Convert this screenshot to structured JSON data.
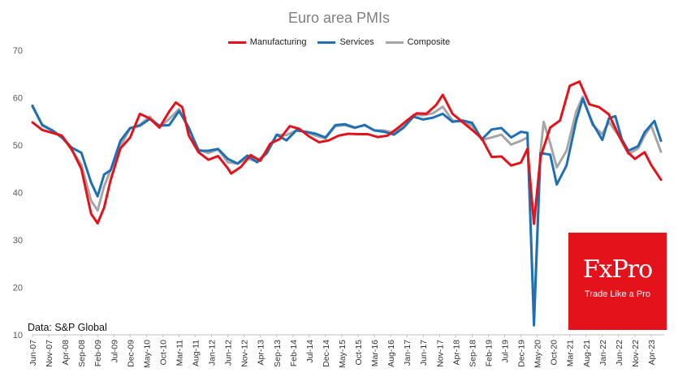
{
  "chart_data": {
    "type": "line",
    "title": "Euro area PMIs",
    "ylim": [
      10,
      70
    ],
    "yticks": [
      10,
      20,
      30,
      40,
      50,
      60,
      70
    ],
    "grid": false,
    "legend_position": "top-center",
    "x_tick_labels": [
      "Jun-07",
      "Nov-07",
      "Apr-08",
      "Sep-08",
      "Feb-09",
      "Jul-09",
      "Dec-09",
      "May-10",
      "Oct-10",
      "Mar-11",
      "Aug-11",
      "Jan-12",
      "Jun-12",
      "Nov-12",
      "Apr-13",
      "Sep-13",
      "Feb-14",
      "Jul-14",
      "Dec-14",
      "May-15",
      "Oct-15",
      "Mar-16",
      "Aug-16",
      "Jan-17",
      "Jun-17",
      "Nov-17",
      "Apr-18",
      "Sep-18",
      "Feb-19",
      "Jul-19",
      "Dec-19",
      "May-20",
      "Oct-20",
      "Mar-21",
      "Aug-21",
      "Jan-22",
      "Jun-22",
      "Nov-22",
      "Apr-23"
    ],
    "series": [
      {
        "name": "Manufacturing",
        "color": "#e3121b",
        "points": [
          [
            "2007-06",
            54.8
          ],
          [
            "2007-09",
            53.2
          ],
          [
            "2007-12",
            52.6
          ],
          [
            "2008-03",
            52.0
          ],
          [
            "2008-06",
            49.2
          ],
          [
            "2008-09",
            45.0
          ],
          [
            "2008-12",
            35.5
          ],
          [
            "2009-02",
            33.5
          ],
          [
            "2009-04",
            36.8
          ],
          [
            "2009-06",
            42.6
          ],
          [
            "2009-09",
            49.3
          ],
          [
            "2009-12",
            51.6
          ],
          [
            "2010-03",
            56.6
          ],
          [
            "2010-06",
            55.6
          ],
          [
            "2010-09",
            53.7
          ],
          [
            "2010-12",
            57.1
          ],
          [
            "2011-02",
            59.0
          ],
          [
            "2011-04",
            58.0
          ],
          [
            "2011-06",
            52.0
          ],
          [
            "2011-09",
            48.5
          ],
          [
            "2011-12",
            46.9
          ],
          [
            "2012-03",
            47.7
          ],
          [
            "2012-06",
            45.1
          ],
          [
            "2012-07",
            44.0
          ],
          [
            "2012-10",
            45.4
          ],
          [
            "2013-01",
            47.9
          ],
          [
            "2013-04",
            46.7
          ],
          [
            "2013-07",
            50.3
          ],
          [
            "2013-10",
            51.3
          ],
          [
            "2014-01",
            54.0
          ],
          [
            "2014-04",
            53.4
          ],
          [
            "2014-07",
            51.8
          ],
          [
            "2014-10",
            50.6
          ],
          [
            "2015-01",
            51.0
          ],
          [
            "2015-04",
            52.0
          ],
          [
            "2015-07",
            52.4
          ],
          [
            "2015-10",
            52.3
          ],
          [
            "2016-01",
            52.3
          ],
          [
            "2016-04",
            51.7
          ],
          [
            "2016-07",
            52.0
          ],
          [
            "2016-10",
            53.5
          ],
          [
            "2017-01",
            55.2
          ],
          [
            "2017-04",
            56.7
          ],
          [
            "2017-07",
            56.6
          ],
          [
            "2017-10",
            58.5
          ],
          [
            "2017-12",
            60.6
          ],
          [
            "2018-03",
            56.6
          ],
          [
            "2018-06",
            54.9
          ],
          [
            "2018-09",
            53.2
          ],
          [
            "2018-12",
            51.4
          ],
          [
            "2019-03",
            47.5
          ],
          [
            "2019-06",
            47.6
          ],
          [
            "2019-09",
            45.7
          ],
          [
            "2019-12",
            46.3
          ],
          [
            "2020-02",
            49.2
          ],
          [
            "2020-04",
            33.4
          ],
          [
            "2020-06",
            47.4
          ],
          [
            "2020-09",
            53.7
          ],
          [
            "2020-12",
            55.2
          ],
          [
            "2021-03",
            62.5
          ],
          [
            "2021-06",
            63.4
          ],
          [
            "2021-09",
            58.6
          ],
          [
            "2021-12",
            58.0
          ],
          [
            "2022-03",
            56.5
          ],
          [
            "2022-06",
            52.1
          ],
          [
            "2022-09",
            48.4
          ],
          [
            "2022-11",
            47.1
          ],
          [
            "2023-02",
            48.5
          ],
          [
            "2023-04",
            45.8
          ],
          [
            "2023-07",
            42.7
          ]
        ]
      },
      {
        "name": "Services",
        "color": "#1f6fb5",
        "points": [
          [
            "2007-06",
            58.3
          ],
          [
            "2007-09",
            54.2
          ],
          [
            "2007-12",
            53.1
          ],
          [
            "2008-03",
            51.6
          ],
          [
            "2008-06",
            49.5
          ],
          [
            "2008-09",
            48.4
          ],
          [
            "2008-12",
            42.1
          ],
          [
            "2009-02",
            39.2
          ],
          [
            "2009-04",
            43.8
          ],
          [
            "2009-06",
            44.7
          ],
          [
            "2009-09",
            50.9
          ],
          [
            "2009-12",
            53.6
          ],
          [
            "2010-03",
            54.1
          ],
          [
            "2010-06",
            55.5
          ],
          [
            "2010-09",
            54.1
          ],
          [
            "2010-12",
            54.2
          ],
          [
            "2011-03",
            57.2
          ],
          [
            "2011-06",
            53.7
          ],
          [
            "2011-09",
            48.8
          ],
          [
            "2011-12",
            48.8
          ],
          [
            "2012-03",
            49.2
          ],
          [
            "2012-06",
            47.1
          ],
          [
            "2012-09",
            46.1
          ],
          [
            "2012-12",
            47.8
          ],
          [
            "2013-03",
            46.4
          ],
          [
            "2013-06",
            48.3
          ],
          [
            "2013-09",
            52.2
          ],
          [
            "2013-12",
            51.0
          ],
          [
            "2014-03",
            53.1
          ],
          [
            "2014-06",
            52.8
          ],
          [
            "2014-09",
            52.4
          ],
          [
            "2014-12",
            51.6
          ],
          [
            "2015-03",
            54.2
          ],
          [
            "2015-06",
            54.4
          ],
          [
            "2015-09",
            53.7
          ],
          [
            "2015-12",
            54.2
          ],
          [
            "2016-03",
            53.1
          ],
          [
            "2016-06",
            52.8
          ],
          [
            "2016-09",
            52.2
          ],
          [
            "2016-12",
            53.7
          ],
          [
            "2017-03",
            56.0
          ],
          [
            "2017-06",
            55.4
          ],
          [
            "2017-09",
            55.8
          ],
          [
            "2017-12",
            56.6
          ],
          [
            "2018-03",
            54.9
          ],
          [
            "2018-06",
            55.2
          ],
          [
            "2018-09",
            54.7
          ],
          [
            "2018-12",
            51.2
          ],
          [
            "2019-03",
            53.3
          ],
          [
            "2019-06",
            53.6
          ],
          [
            "2019-09",
            51.6
          ],
          [
            "2019-12",
            52.8
          ],
          [
            "2020-02",
            52.6
          ],
          [
            "2020-04",
            12.0
          ],
          [
            "2020-06",
            48.3
          ],
          [
            "2020-09",
            48.0
          ],
          [
            "2020-11",
            41.7
          ],
          [
            "2021-02",
            45.7
          ],
          [
            "2021-05",
            55.2
          ],
          [
            "2021-07",
            59.8
          ],
          [
            "2021-10",
            54.6
          ],
          [
            "2022-01",
            51.1
          ],
          [
            "2022-03",
            55.6
          ],
          [
            "2022-05",
            56.1
          ],
          [
            "2022-07",
            51.2
          ],
          [
            "2022-09",
            48.8
          ],
          [
            "2022-12",
            49.8
          ],
          [
            "2023-02",
            52.7
          ],
          [
            "2023-05",
            55.1
          ],
          [
            "2023-07",
            50.9
          ]
        ]
      },
      {
        "name": "Composite",
        "color": "#a6a6a6",
        "points": [
          [
            "2007-06",
            58.1
          ],
          [
            "2007-09",
            54.3
          ],
          [
            "2007-12",
            53.2
          ],
          [
            "2008-03",
            51.8
          ],
          [
            "2008-06",
            49.0
          ],
          [
            "2008-09",
            45.9
          ],
          [
            "2008-12",
            38.3
          ],
          [
            "2009-02",
            36.2
          ],
          [
            "2009-04",
            41.3
          ],
          [
            "2009-06",
            44.7
          ],
          [
            "2009-09",
            49.8
          ],
          [
            "2009-12",
            53.5
          ],
          [
            "2010-03",
            54.3
          ],
          [
            "2010-06",
            56.0
          ],
          [
            "2010-09",
            53.8
          ],
          [
            "2010-12",
            55.5
          ],
          [
            "2011-03",
            57.6
          ],
          [
            "2011-06",
            53.3
          ],
          [
            "2011-09",
            49.1
          ],
          [
            "2011-12",
            48.3
          ],
          [
            "2012-03",
            49.1
          ],
          [
            "2012-06",
            46.4
          ],
          [
            "2012-09",
            46.1
          ],
          [
            "2012-12",
            47.2
          ],
          [
            "2013-03",
            46.5
          ],
          [
            "2013-06",
            48.7
          ],
          [
            "2013-09",
            52.2
          ],
          [
            "2013-12",
            52.1
          ],
          [
            "2014-03",
            53.1
          ],
          [
            "2014-06",
            52.8
          ],
          [
            "2014-09",
            52.0
          ],
          [
            "2014-12",
            51.4
          ],
          [
            "2015-03",
            54.0
          ],
          [
            "2015-06",
            54.2
          ],
          [
            "2015-09",
            53.6
          ],
          [
            "2015-12",
            54.3
          ],
          [
            "2016-03",
            53.1
          ],
          [
            "2016-06",
            53.1
          ],
          [
            "2016-09",
            52.6
          ],
          [
            "2016-12",
            54.4
          ],
          [
            "2017-03",
            56.4
          ],
          [
            "2017-06",
            56.3
          ],
          [
            "2017-09",
            56.7
          ],
          [
            "2017-12",
            58.1
          ],
          [
            "2018-03",
            55.2
          ],
          [
            "2018-06",
            54.9
          ],
          [
            "2018-09",
            54.1
          ],
          [
            "2018-12",
            51.1
          ],
          [
            "2019-03",
            51.6
          ],
          [
            "2019-06",
            52.2
          ],
          [
            "2019-09",
            50.1
          ],
          [
            "2019-12",
            50.9
          ],
          [
            "2020-02",
            51.6
          ],
          [
            "2020-04",
            13.6
          ],
          [
            "2020-06",
            48.5
          ],
          [
            "2020-07",
            54.9
          ],
          [
            "2020-09",
            50.4
          ],
          [
            "2020-11",
            45.3
          ],
          [
            "2021-02",
            48.8
          ],
          [
            "2021-05",
            57.1
          ],
          [
            "2021-07",
            60.2
          ],
          [
            "2021-10",
            54.2
          ],
          [
            "2022-01",
            52.3
          ],
          [
            "2022-03",
            54.9
          ],
          [
            "2022-06",
            52.0
          ],
          [
            "2022-09",
            48.1
          ],
          [
            "2022-12",
            49.3
          ],
          [
            "2023-02",
            52.0
          ],
          [
            "2023-04",
            54.1
          ],
          [
            "2023-07",
            48.6
          ]
        ]
      }
    ]
  },
  "source_note": "Data: S&P Global",
  "logo": {
    "text": "FxPro",
    "tagline": "Trade Like a Pro",
    "color": "#e3121b"
  }
}
